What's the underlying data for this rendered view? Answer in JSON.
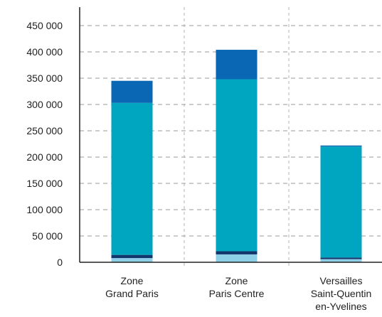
{
  "chart_data": {
    "type": "bar",
    "stacked": true,
    "categories": [
      [
        "Zone",
        "Grand Paris"
      ],
      [
        "Zone",
        "Paris Centre"
      ],
      [
        "Versailles",
        "Saint-Quentin",
        "en-Yvelines"
      ]
    ],
    "series": [
      {
        "values": [
          8000,
          15000,
          6000
        ],
        "color": "#8ecfe8"
      },
      {
        "values": [
          6000,
          6000,
          3000
        ],
        "color": "#12356b"
      },
      {
        "values": [
          289000,
          327000,
          211000
        ],
        "color": "#00a5c0"
      },
      {
        "values": [
          42000,
          56000,
          2000
        ],
        "color": "#0a67b4"
      }
    ],
    "yticks": [
      "0",
      "50 000",
      "100 000",
      "150 000",
      "200 000",
      "250 000",
      "300 000",
      "350 000",
      "400 000",
      "450 000"
    ],
    "ylim": [
      0,
      450000
    ],
    "grid": true,
    "title": "",
    "xlabel": "",
    "ylabel": ""
  }
}
